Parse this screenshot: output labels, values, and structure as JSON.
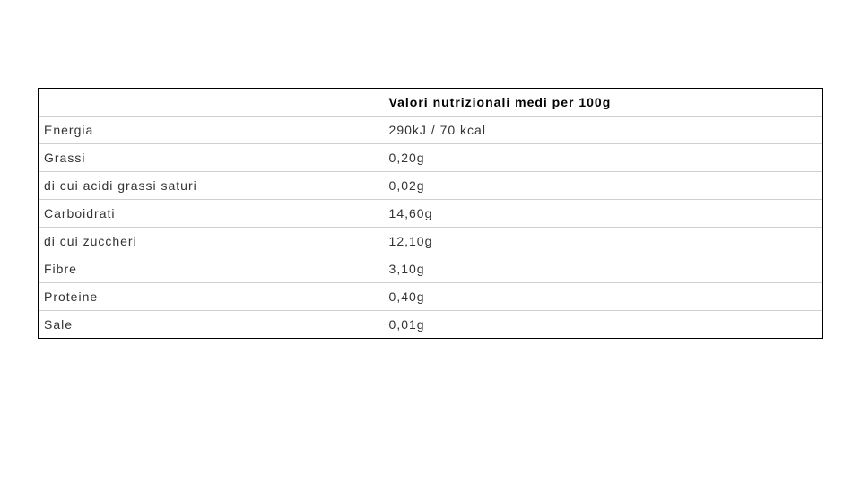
{
  "table": {
    "type": "table",
    "header_label": "",
    "header_value": "Valori nutrizionali medi per 100g",
    "columns": [
      "label",
      "value"
    ],
    "column_widths": [
      "44%",
      "56%"
    ],
    "border_color": "#000000",
    "row_border_color": "#d0d0d0",
    "background_color": "#ffffff",
    "text_color": "#333333",
    "header_text_color": "#000000",
    "font_size": 14,
    "letter_spacing": 1,
    "rows": [
      {
        "label": "Energia",
        "value": "290kJ / 70 kcal"
      },
      {
        "label": "Grassi",
        "value": "0,20g"
      },
      {
        "label": "di cui acidi grassi saturi",
        "value": "0,02g"
      },
      {
        "label": "Carboidrati",
        "value": "14,60g"
      },
      {
        "label": "di cui zuccheri",
        "value": "12,10g"
      },
      {
        "label": "Fibre",
        "value": "3,10g"
      },
      {
        "label": "Proteine",
        "value": "0,40g"
      },
      {
        "label": "Sale",
        "value": "0,01g"
      }
    ]
  }
}
